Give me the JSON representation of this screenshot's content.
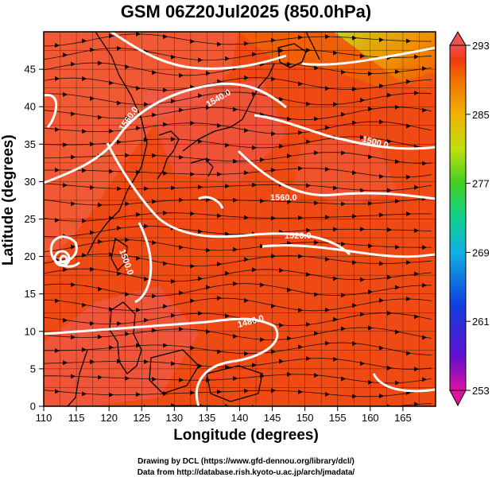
{
  "title": "GSM 06Z20Jul2025 (850.0hPa)",
  "x_axis": {
    "label": "Longitude (degrees)",
    "range": [
      110,
      170
    ],
    "ticks": [
      110,
      115,
      120,
      125,
      130,
      135,
      140,
      145,
      150,
      155,
      160,
      165
    ]
  },
  "y_axis": {
    "label": "Latitude (degrees)",
    "range": [
      0,
      50
    ],
    "ticks": [
      0,
      5,
      10,
      15,
      20,
      25,
      30,
      35,
      40,
      45
    ]
  },
  "colorbar": {
    "ticks": [
      293,
      285,
      277,
      269,
      261,
      253
    ],
    "range": [
      253,
      293
    ],
    "colors": [
      "#e010a0",
      "#6010d0",
      "#1040e0",
      "#10b0e0",
      "#10d090",
      "#40d020",
      "#c0e010",
      "#f0b000",
      "#f07000",
      "#f03a14",
      "#f05050"
    ]
  },
  "contour_labels": [
    "1480.0",
    "1500.0",
    "1520.0",
    "1540.0",
    "1560.0"
  ],
  "map_labels": {
    "contour_1480_east": "1480.0",
    "contour_1520_center": "1520.0",
    "contour_1540_ne": "1540.0",
    "contour_1560_north": "1560.0",
    "contour_1500_west": "1500.0",
    "contour_1560_center": "1560.0",
    "contour_1500_north": "1500.0"
  },
  "credits": {
    "line1": "Drawing by DCL (https://www.gfd-dennou.org/library/dcl/)",
    "line2": "Data from http://database.rish.kyoto-u.ac.jp/arch/jmadata/"
  },
  "colors": {
    "warm_field": "#f04a14",
    "hot_field": "#f06060",
    "coast": "#000000",
    "contour": "#ffffff",
    "gridline": "#000000"
  }
}
